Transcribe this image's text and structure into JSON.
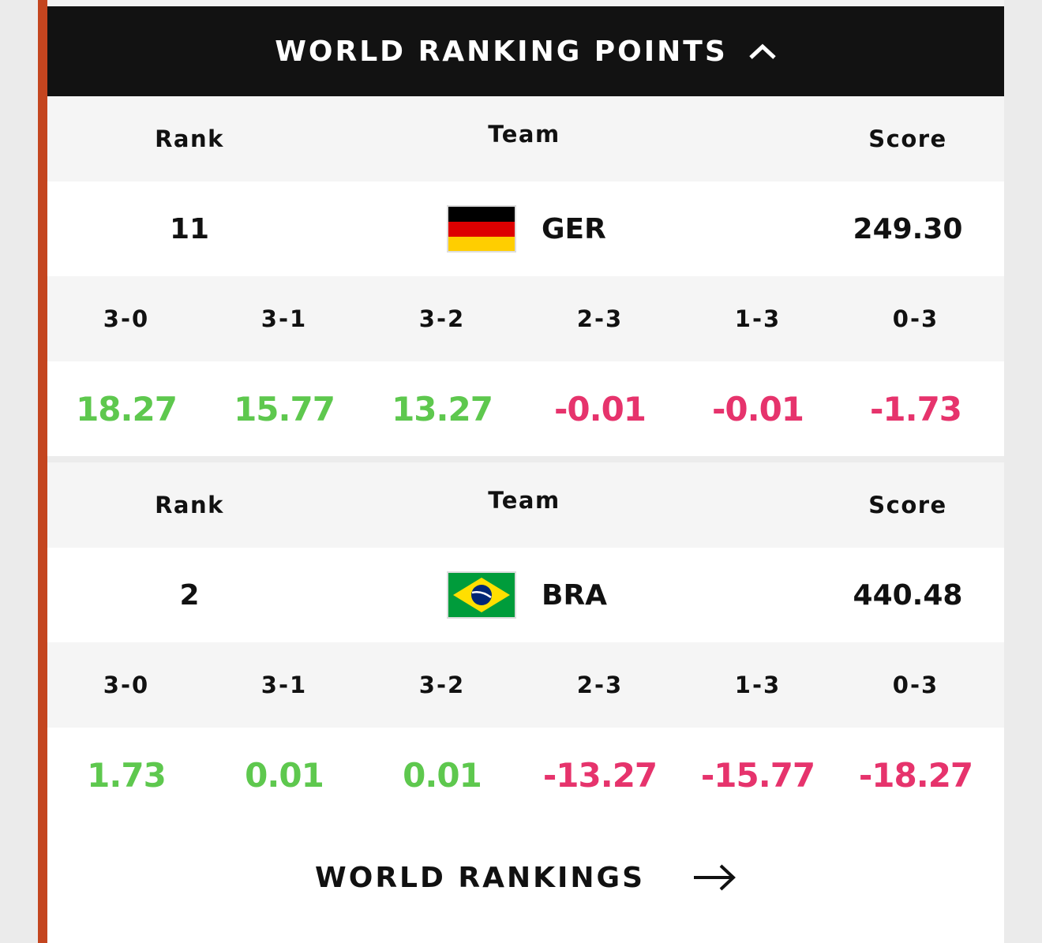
{
  "header": {
    "title": "WORLD RANKING POINTS"
  },
  "teams": [
    {
      "rank_label": "Rank",
      "team_label": "Team",
      "score_label": "Score",
      "rank": "11",
      "team": "GER",
      "score": "249.30",
      "outcomes": [
        "3-0",
        "3-1",
        "3-2",
        "2-3",
        "1-3",
        "0-3"
      ],
      "points": [
        "18.27",
        "15.77",
        "13.27",
        "-0.01",
        "-0.01",
        "-1.73"
      ]
    },
    {
      "rank_label": "Rank",
      "team_label": "Team",
      "score_label": "Score",
      "rank": "2",
      "team": "BRA",
      "score": "440.48",
      "outcomes": [
        "3-0",
        "3-1",
        "3-2",
        "2-3",
        "1-3",
        "0-3"
      ],
      "points": [
        "1.73",
        "0.01",
        "0.01",
        "-13.27",
        "-15.77",
        "-18.27"
      ]
    }
  ],
  "footer": {
    "link": "WORLD RANKINGS"
  }
}
